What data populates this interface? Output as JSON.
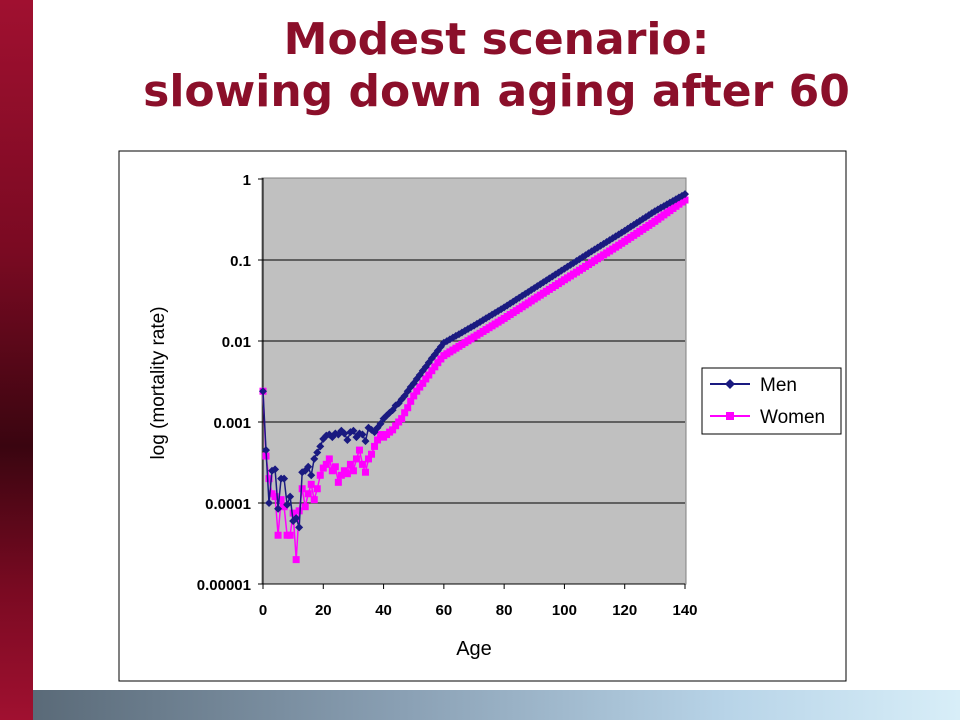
{
  "slide": {
    "title_line1": "Modest scenario:",
    "title_line2": "slowing down aging after 60",
    "title_color": "#8b0f2a"
  },
  "chart_data": {
    "type": "line",
    "xlabel": "Age",
    "ylabel": "log (mortality rate)",
    "xlim": [
      0,
      140
    ],
    "ylim": [
      1e-05,
      1
    ],
    "y_scale": "log",
    "x_ticks": [
      "0",
      "20",
      "40",
      "60",
      "80",
      "100",
      "120",
      "140"
    ],
    "y_ticks": [
      "1",
      "0.1",
      "0.01",
      "0.001",
      "0.0001",
      "0.00001"
    ],
    "grid": "horizontal",
    "plot_background": "#c0c0c0",
    "legend": "right",
    "series": [
      {
        "name": "Men",
        "color": "#1a1a80",
        "marker": "diamond",
        "points": [
          [
            0,
            0.0024
          ],
          [
            1,
            0.00045
          ],
          [
            2,
            0.0001
          ],
          [
            3,
            0.00025
          ],
          [
            4,
            0.00026
          ],
          [
            5,
            8.5e-05
          ],
          [
            6,
            0.0002
          ],
          [
            7,
            0.0002
          ],
          [
            8,
            9.5e-05
          ],
          [
            9,
            0.00012
          ],
          [
            10,
            6e-05
          ],
          [
            11,
            6.5e-05
          ],
          [
            12,
            5e-05
          ],
          [
            13,
            0.00024
          ],
          [
            14,
            0.00025
          ],
          [
            15,
            0.00028
          ],
          [
            16,
            0.00022
          ],
          [
            17,
            0.00035
          ],
          [
            18,
            0.00042
          ],
          [
            19,
            0.0005
          ],
          [
            20,
            0.00062
          ],
          [
            21,
            0.00068
          ],
          [
            22,
            0.0007
          ],
          [
            23,
            0.00065
          ],
          [
            24,
            0.00072
          ],
          [
            25,
            0.0007
          ],
          [
            26,
            0.00078
          ],
          [
            27,
            0.00072
          ],
          [
            28,
            0.0006
          ],
          [
            29,
            0.00075
          ],
          [
            30,
            0.00078
          ],
          [
            31,
            0.00065
          ],
          [
            32,
            0.00072
          ],
          [
            33,
            0.0007
          ],
          [
            34,
            0.00058
          ],
          [
            35,
            0.00085
          ],
          [
            36,
            0.0008
          ],
          [
            37,
            0.00075
          ],
          [
            38,
            0.00085
          ],
          [
            39,
            0.00095
          ],
          [
            40,
            0.0011
          ],
          [
            41,
            0.0012
          ],
          [
            42,
            0.0013
          ],
          [
            43,
            0.0014
          ],
          [
            44,
            0.0016
          ],
          [
            45,
            0.0017
          ],
          [
            46,
            0.0019
          ],
          [
            47,
            0.0021
          ],
          [
            48,
            0.0024
          ],
          [
            49,
            0.0027
          ],
          [
            50,
            0.003
          ],
          [
            51,
            0.0034
          ],
          [
            52,
            0.0038
          ],
          [
            53,
            0.0043
          ],
          [
            54,
            0.0048
          ],
          [
            55,
            0.0054
          ],
          [
            56,
            0.0061
          ],
          [
            57,
            0.0068
          ],
          [
            58,
            0.0076
          ],
          [
            59,
            0.0085
          ],
          [
            60,
            0.0095
          ],
          [
            70,
            0.0155
          ],
          [
            80,
            0.026
          ],
          [
            90,
            0.045
          ],
          [
            100,
            0.078
          ],
          [
            110,
            0.135
          ],
          [
            120,
            0.23
          ],
          [
            130,
            0.4
          ],
          [
            139,
            0.62
          ],
          [
            140,
            0.65
          ]
        ]
      },
      {
        "name": "Women",
        "color": "#ff00ff",
        "marker": "square",
        "points": [
          [
            0,
            0.0024
          ],
          [
            1,
            0.00038
          ],
          [
            2,
            0.0002
          ],
          [
            3,
            0.00013
          ],
          [
            4,
            0.00012
          ],
          [
            5,
            4e-05
          ],
          [
            6,
            0.00011
          ],
          [
            7,
            9e-05
          ],
          [
            8,
            4e-05
          ],
          [
            9,
            4e-05
          ],
          [
            10,
            7.5e-05
          ],
          [
            11,
            2e-05
          ],
          [
            12,
            8e-05
          ],
          [
            13,
            0.00015
          ],
          [
            14,
            9e-05
          ],
          [
            15,
            0.00013
          ],
          [
            16,
            0.00017
          ],
          [
            17,
            0.00011
          ],
          [
            18,
            0.00015
          ],
          [
            19,
            0.00022
          ],
          [
            20,
            0.00027
          ],
          [
            21,
            0.0003
          ],
          [
            22,
            0.00035
          ],
          [
            23,
            0.00025
          ],
          [
            24,
            0.00028
          ],
          [
            25,
            0.00018
          ],
          [
            26,
            0.00022
          ],
          [
            27,
            0.00025
          ],
          [
            28,
            0.00023
          ],
          [
            29,
            0.0003
          ],
          [
            30,
            0.00025
          ],
          [
            31,
            0.00035
          ],
          [
            32,
            0.00045
          ],
          [
            33,
            0.0003
          ],
          [
            34,
            0.00024
          ],
          [
            35,
            0.00035
          ],
          [
            36,
            0.0004
          ],
          [
            37,
            0.0005
          ],
          [
            38,
            0.0006
          ],
          [
            39,
            0.0007
          ],
          [
            40,
            0.00065
          ],
          [
            41,
            0.0007
          ],
          [
            42,
            0.00075
          ],
          [
            43,
            0.0008
          ],
          [
            44,
            0.0009
          ],
          [
            45,
            0.001
          ],
          [
            46,
            0.0011
          ],
          [
            47,
            0.0013
          ],
          [
            48,
            0.0015
          ],
          [
            49,
            0.0018
          ],
          [
            50,
            0.0021
          ],
          [
            51,
            0.0024
          ],
          [
            52,
            0.0027
          ],
          [
            53,
            0.003
          ],
          [
            54,
            0.0034
          ],
          [
            55,
            0.0038
          ],
          [
            56,
            0.0043
          ],
          [
            57,
            0.0048
          ],
          [
            58,
            0.0054
          ],
          [
            59,
            0.006
          ],
          [
            60,
            0.0066
          ],
          [
            70,
            0.0112
          ],
          [
            80,
            0.019
          ],
          [
            90,
            0.033
          ],
          [
            100,
            0.057
          ],
          [
            110,
            0.098
          ],
          [
            120,
            0.17
          ],
          [
            130,
            0.3
          ],
          [
            139,
            0.52
          ],
          [
            140,
            0.55
          ]
        ]
      }
    ]
  }
}
